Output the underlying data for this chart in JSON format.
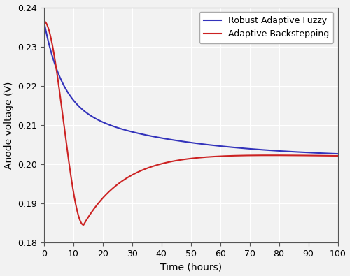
{
  "title": "",
  "xlabel": "Time (hours)",
  "ylabel": "Anode voltage (V)",
  "xlim": [
    0,
    100
  ],
  "ylim": [
    0.18,
    0.24
  ],
  "xticks": [
    0,
    10,
    20,
    30,
    40,
    50,
    60,
    70,
    80,
    90,
    100
  ],
  "yticks": [
    0.18,
    0.19,
    0.2,
    0.21,
    0.22,
    0.23,
    0.24
  ],
  "blue_color": "#3333bb",
  "red_color": "#cc2222",
  "legend": [
    "Robust Adaptive Fuzzy",
    "Adaptive Backstepping"
  ],
  "background_color": "#f2f2f2",
  "grid_color": "#ffffff",
  "steady_state": 0.2015,
  "initial_value": 0.2365,
  "red_min": 0.1845,
  "red_min_t": 13.5,
  "red_overshoot": 0.2025,
  "red_overshoot_t": 48.0
}
